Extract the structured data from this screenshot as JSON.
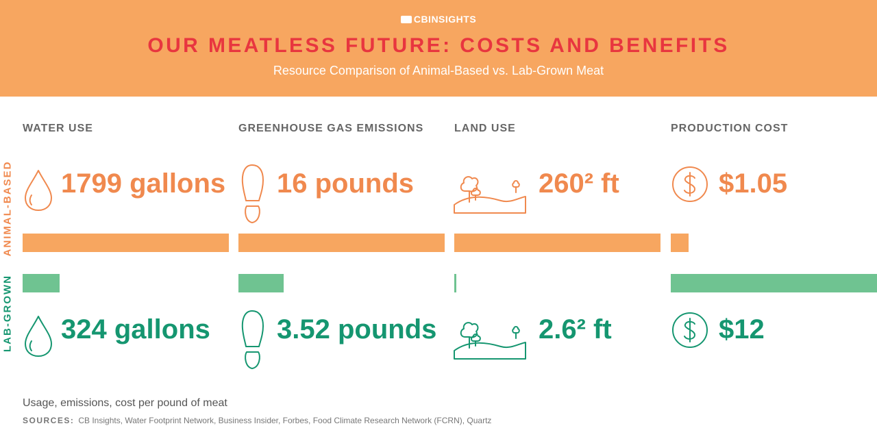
{
  "brand": "CBINSIGHTS",
  "title": "OUR MEATLESS FUTURE: COSTS AND BENEFITS",
  "subtitle": "Resource Comparison of Animal-Based vs. Lab-Grown Meat",
  "row_labels": {
    "animal": "ANIMAL-BASED",
    "lab": "LAB-GROWN"
  },
  "colors": {
    "animal": "#F0894E",
    "animal_bar": "#F7A660",
    "lab": "#159670",
    "lab_bar": "#6FC391",
    "header_bg": "#F7A660",
    "title": "#E8363F"
  },
  "chart_data": {
    "type": "bar",
    "categories": [
      "WATER USE",
      "GREENHOUSE GAS EMISSIONS",
      "LAND USE",
      "PRODUCTION COST"
    ],
    "series": [
      {
        "name": "ANIMAL-BASED",
        "values": [
          1799,
          16,
          260,
          1.05
        ],
        "labels": [
          "1799 gallons",
          "16 pounds",
          "260² ft",
          "$1.05"
        ]
      },
      {
        "name": "LAB-GROWN",
        "values": [
          324,
          3.52,
          2.6,
          12
        ],
        "labels": [
          "324 gallons",
          "3.52 pounds",
          "2.6² ft",
          "$12"
        ]
      }
    ],
    "icons": [
      "water-drop-icon",
      "footprint-icon",
      "landscape-icon",
      "dollar-icon"
    ]
  },
  "footnote": "Usage, emissions, cost per pound of meat",
  "sources": {
    "label": "SOURCES:",
    "text": "CB Insights, Water Footprint Network, Business Insider, Forbes, Food Climate Research Network (FCRN), Quartz"
  }
}
